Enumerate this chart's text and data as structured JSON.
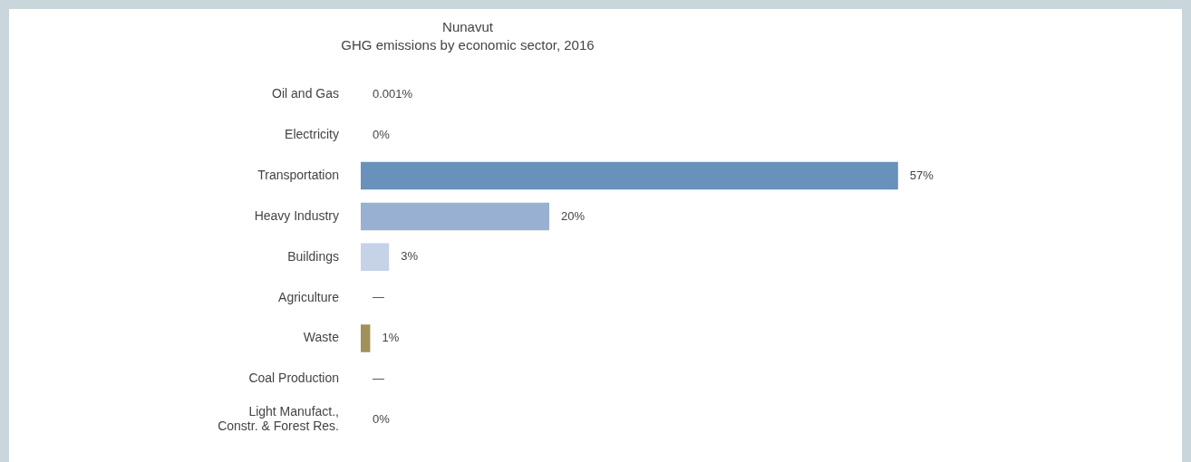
{
  "chart_data": {
    "type": "bar",
    "orientation": "horizontal",
    "title": "Nunavut",
    "subtitle": "GHG emissions by economic sector, 2016",
    "categories": [
      "Oil and Gas",
      "Electricity",
      "Transportation",
      "Heavy Industry",
      "Buildings",
      "Agriculture",
      "Waste",
      "Coal Production",
      "Light Manufact.,\nConstr. & Forest Res."
    ],
    "values": [
      0.001,
      0,
      57,
      20,
      3,
      null,
      1,
      null,
      0
    ],
    "colors": [
      "#4a7fb5",
      "#6891bb",
      "#6891bb",
      "#98b0d1",
      "#c5d2e8",
      "#c5d2e8",
      "#a0905a",
      "#a0905a",
      "#a0905a"
    ],
    "value_labels": [
      "0.001%",
      "0%",
      "57%",
      "20%",
      "3%",
      "—",
      "1%",
      "—",
      "0%"
    ],
    "data_labels": true,
    "tick_labels": "y",
    "legend": false
  }
}
